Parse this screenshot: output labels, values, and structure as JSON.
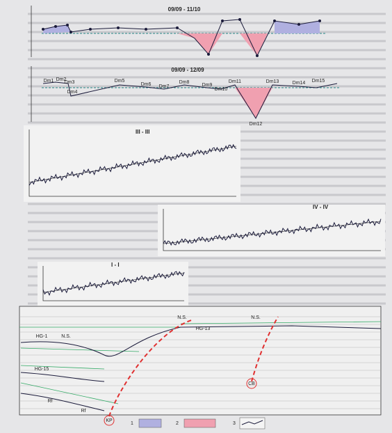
{
  "panels": {
    "top": {
      "title": "09/09 - 11/10"
    },
    "middle": {
      "title": "09/09 - 12/09",
      "labels": [
        "Dm1",
        "Dm2",
        "Dm3",
        "Dm4",
        "Dm5",
        "Dm6",
        "Dm7",
        "Dm8",
        "Dm9",
        "Dm10",
        "Dm11",
        "Dm12",
        "Dm13",
        "Dm14",
        "Dm15"
      ]
    },
    "profile_3": {
      "title": "III - III"
    },
    "profile_4": {
      "title": "IV - IV"
    },
    "profile_1": {
      "title": "I - I"
    },
    "section": {
      "labels": [
        "N.S.",
        "N.S.",
        "N.S.",
        "HG-1",
        "HG-15",
        "HG-13",
        "Rf",
        "Rf",
        "KP",
        "CB"
      ]
    },
    "legend": [
      "1",
      "2",
      "3"
    ]
  }
}
